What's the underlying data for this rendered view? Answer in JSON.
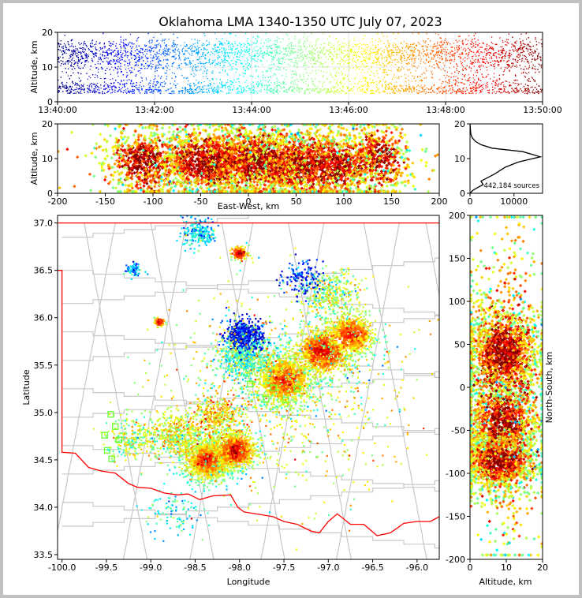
{
  "figure": {
    "title": "Oklahoma LMA 1340-1350 UTC July 07, 2023"
  },
  "chart_data": [
    {
      "panel": "time-height",
      "type": "scatter",
      "xlabel": "",
      "ylabel": "Altitude, km",
      "xlim": [
        "13:40:00",
        "13:50:00"
      ],
      "ylim": [
        0,
        20
      ],
      "x_ticks": [
        "13:40:00",
        "13:42:00",
        "13:44:00",
        "13:46:00",
        "13:48:00",
        "13:50:00"
      ],
      "y_ticks": [
        "0",
        "10",
        "20"
      ],
      "grid": true,
      "color_encoding": "time (jet colormap, blue early to red late)"
    },
    {
      "panel": "east-west-altitude",
      "type": "scatter",
      "xlabel": "East-West, km",
      "ylabel": "Altitude, km",
      "xlim": [
        -200,
        200
      ],
      "ylim": [
        0,
        20
      ],
      "x_ticks": [
        "-200",
        "-150",
        "-100",
        "-50",
        "0",
        "50",
        "100",
        "150",
        "200"
      ],
      "y_ticks": [
        "0",
        "10",
        "20"
      ],
      "clusters": [
        {
          "x": -110,
          "z": 9,
          "sx": 20,
          "sz": 5,
          "w": 0.12
        },
        {
          "x": -40,
          "z": 9,
          "sx": 28,
          "sz": 5,
          "w": 0.25
        },
        {
          "x": 10,
          "z": 9,
          "sx": 25,
          "sz": 5,
          "w": 0.18
        },
        {
          "x": 55,
          "z": 8,
          "sx": 22,
          "sz": 5,
          "w": 0.15
        },
        {
          "x": 90,
          "z": 8,
          "sx": 25,
          "sz": 5,
          "w": 0.15
        },
        {
          "x": 135,
          "z": 10,
          "sx": 18,
          "sz": 5,
          "w": 0.1
        },
        {
          "x": 0,
          "z": 10,
          "sx": 110,
          "sz": 6,
          "w": 0.05
        }
      ]
    },
    {
      "panel": "altitude-histogram",
      "type": "line",
      "xlabel": "",
      "ylabel": "",
      "xlim": [
        0,
        16500
      ],
      "ylim": [
        0,
        20
      ],
      "x_ticks": [
        "0",
        "10000"
      ],
      "y_ticks": [
        "0",
        "10",
        "20"
      ],
      "annotation": "442,184 sources",
      "x": [
        0,
        600,
        1500,
        3000,
        2500,
        5500,
        8000,
        11000,
        16000,
        12000,
        5000,
        2500,
        1200,
        500,
        200,
        100,
        50,
        0
      ],
      "y": [
        0,
        0.8,
        1.5,
        2.5,
        3.5,
        5.5,
        7.5,
        9,
        10.5,
        12,
        13,
        14,
        15,
        16,
        17,
        18,
        19,
        20
      ]
    },
    {
      "panel": "plan-view",
      "type": "scatter",
      "xlabel": "Longitude",
      "ylabel": "Latitude",
      "xlim": [
        -100.05,
        -95.75
      ],
      "ylim": [
        33.45,
        37.08
      ],
      "x_ticks": [
        "-100.0",
        "-99.5",
        "-99.0",
        "-98.5",
        "-98.0",
        "-97.5",
        "-97.0",
        "-96.5",
        "-96.0"
      ],
      "y_ticks": [
        "33.5",
        "34.0",
        "34.5",
        "35.0",
        "35.5",
        "36.0",
        "36.5",
        "37.0"
      ],
      "state_border_color": "#ff0000",
      "county_line_color": "#c8c8c8",
      "station_color": "#66ff33",
      "stations": [
        {
          "lon": -99.45,
          "lat": 34.98
        },
        {
          "lon": -99.4,
          "lat": 34.85
        },
        {
          "lon": -99.52,
          "lat": 34.76
        },
        {
          "lon": -99.49,
          "lat": 34.6
        },
        {
          "lon": -99.44,
          "lat": 34.51
        },
        {
          "lon": -99.36,
          "lat": 34.71
        },
        {
          "lon": -97.62,
          "lat": 35.26
        },
        {
          "lon": -97.35,
          "lat": 35.25
        },
        {
          "lon": -97.48,
          "lat": 35.13
        },
        {
          "lon": -97.7,
          "lat": 35.14
        },
        {
          "lon": -97.88,
          "lat": 35.3
        }
      ],
      "clusters": [
        {
          "lon": -98.35,
          "lat": 34.5,
          "s": 0.14,
          "t": 0.9,
          "n": 1200
        },
        {
          "lon": -98.05,
          "lat": 34.6,
          "s": 0.12,
          "t": 0.95,
          "n": 900
        },
        {
          "lon": -97.5,
          "lat": 35.35,
          "s": 0.2,
          "t": 0.85,
          "n": 900
        },
        {
          "lon": -97.05,
          "lat": 35.65,
          "s": 0.18,
          "t": 0.92,
          "n": 800
        },
        {
          "lon": -96.75,
          "lat": 35.82,
          "s": 0.16,
          "t": 0.88,
          "n": 500
        },
        {
          "lon": -97.95,
          "lat": 35.6,
          "s": 0.15,
          "t": 0.45,
          "n": 700
        },
        {
          "lon": -97.95,
          "lat": 35.82,
          "s": 0.1,
          "t": 0.12,
          "n": 450
        },
        {
          "lon": -98.7,
          "lat": 34.75,
          "s": 0.15,
          "t": 0.6,
          "n": 500
        },
        {
          "lon": -98.25,
          "lat": 34.95,
          "s": 0.15,
          "t": 0.65,
          "n": 400
        },
        {
          "lon": -96.95,
          "lat": 36.25,
          "s": 0.15,
          "t": 0.55,
          "n": 350
        },
        {
          "lon": -97.3,
          "lat": 36.4,
          "s": 0.12,
          "t": 0.15,
          "n": 150
        },
        {
          "lon": -98.45,
          "lat": 36.9,
          "s": 0.1,
          "t": 0.35,
          "n": 220
        },
        {
          "lon": -98.0,
          "lat": 36.68,
          "s": 0.05,
          "t": 0.98,
          "n": 100
        },
        {
          "lon": -99.2,
          "lat": 36.5,
          "s": 0.05,
          "t": 0.3,
          "n": 70
        },
        {
          "lon": -98.9,
          "lat": 35.95,
          "s": 0.03,
          "t": 1.0,
          "n": 60
        },
        {
          "lon": -99.2,
          "lat": 34.72,
          "s": 0.15,
          "t": 0.55,
          "n": 250
        },
        {
          "lon": -98.75,
          "lat": 33.95,
          "s": 0.15,
          "t": 0.4,
          "n": 100
        },
        {
          "lon": -97.5,
          "lat": 35.2,
          "s": 0.7,
          "t": 0.6,
          "n": 900
        }
      ]
    },
    {
      "panel": "altitude-north-south",
      "type": "scatter",
      "xlabel": "Altitude, km",
      "ylabel": "North-South, km",
      "xlim": [
        0,
        20
      ],
      "ylim": [
        -200,
        200
      ],
      "x_ticks": [
        "0",
        "10",
        "20"
      ],
      "y_ticks": [
        "-200",
        "-150",
        "-100",
        "-50",
        "0",
        "50",
        "100",
        "150",
        "200"
      ],
      "clusters": [
        {
          "y": 40,
          "z": 9,
          "sy": 25,
          "sz": 5,
          "w": 0.3
        },
        {
          "y": -40,
          "z": 9,
          "sy": 20,
          "sz": 5,
          "w": 0.2
        },
        {
          "y": -85,
          "z": 8,
          "sy": 18,
          "sz": 5,
          "w": 0.3
        },
        {
          "y": 0,
          "z": 10,
          "sy": 100,
          "sz": 6,
          "w": 0.2
        }
      ]
    }
  ]
}
